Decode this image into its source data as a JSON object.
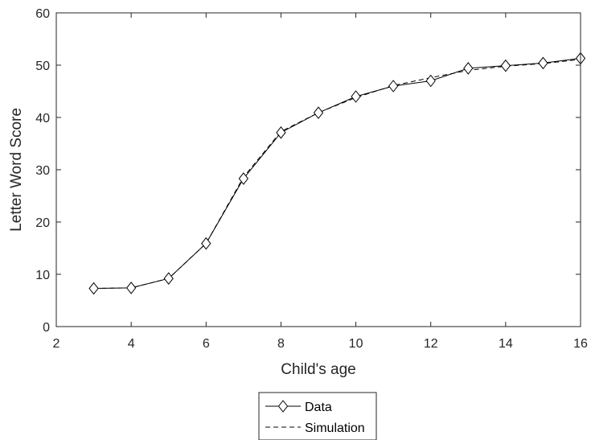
{
  "chart_data": {
    "type": "line",
    "xlabel": "Child's age",
    "ylabel": "Letter Word Score",
    "xlim": [
      2,
      16
    ],
    "ylim": [
      0,
      60
    ],
    "xticks": [
      "2",
      "4",
      "6",
      "8",
      "10",
      "12",
      "14",
      "16"
    ],
    "yticks": [
      "0",
      "10",
      "20",
      "30",
      "40",
      "50",
      "60"
    ],
    "grid": false,
    "legend_position": "bottom-center",
    "x": [
      3,
      4,
      5,
      6,
      7,
      8,
      9,
      10,
      11,
      12,
      13,
      14,
      15,
      16
    ],
    "series": [
      {
        "name": "Data",
        "style": "solid line with diamond markers",
        "color": "#000000",
        "values": [
          7.3,
          7.4,
          9.2,
          15.9,
          28.3,
          37.1,
          40.9,
          44.0,
          46.0,
          47.0,
          49.4,
          49.9,
          50.4,
          51.3
        ]
      },
      {
        "name": "Simulation",
        "style": "dashed line",
        "color": "#000000",
        "values": [
          7.3,
          7.4,
          9.2,
          15.9,
          28.6,
          37.3,
          40.9,
          43.8,
          46.1,
          47.6,
          49.0,
          49.8,
          50.3,
          51.1
        ]
      }
    ]
  }
}
